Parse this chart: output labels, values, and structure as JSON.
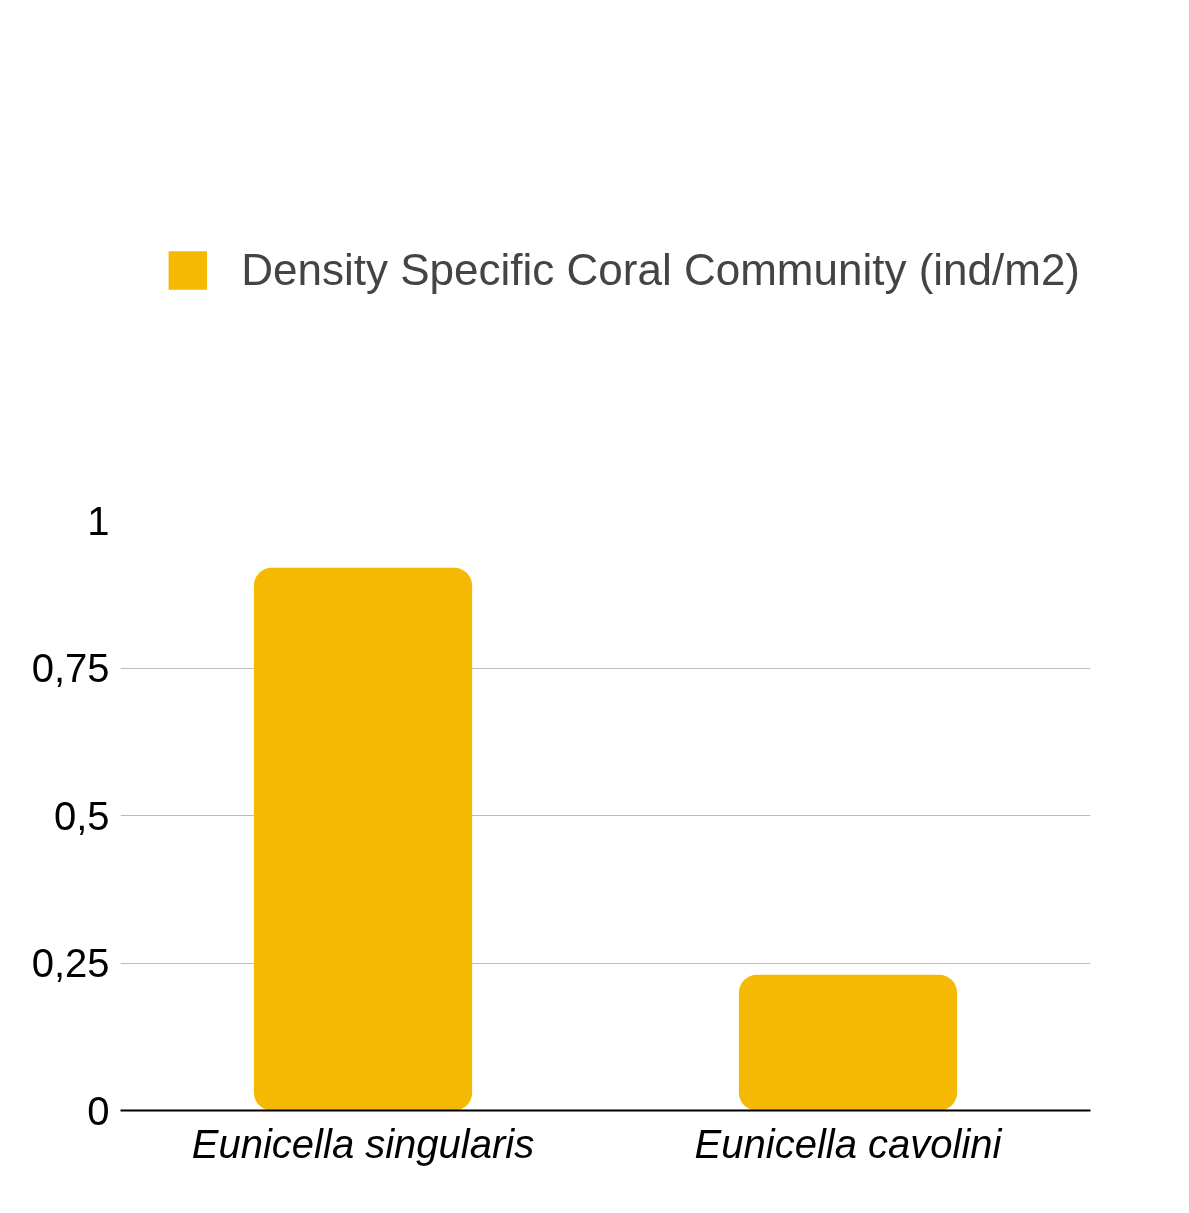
{
  "chart_data": {
    "type": "bar",
    "categories": [
      "Eunicella singularis",
      "Eunicella cavolini"
    ],
    "series": [
      {
        "name": "Density Specific Coral Community (ind/m2)",
        "color": "#f6b903",
        "values": [
          0.92,
          0.23
        ]
      }
    ],
    "ylim": [
      0,
      1
    ],
    "yticks": [
      0,
      {
        "value": 0.25,
        "label": "0,25"
      },
      {
        "value": 0.5,
        "label": "0,5"
      },
      {
        "value": 0.75,
        "label": "0,75"
      },
      1
    ],
    "grid": "y",
    "legend": "top"
  }
}
